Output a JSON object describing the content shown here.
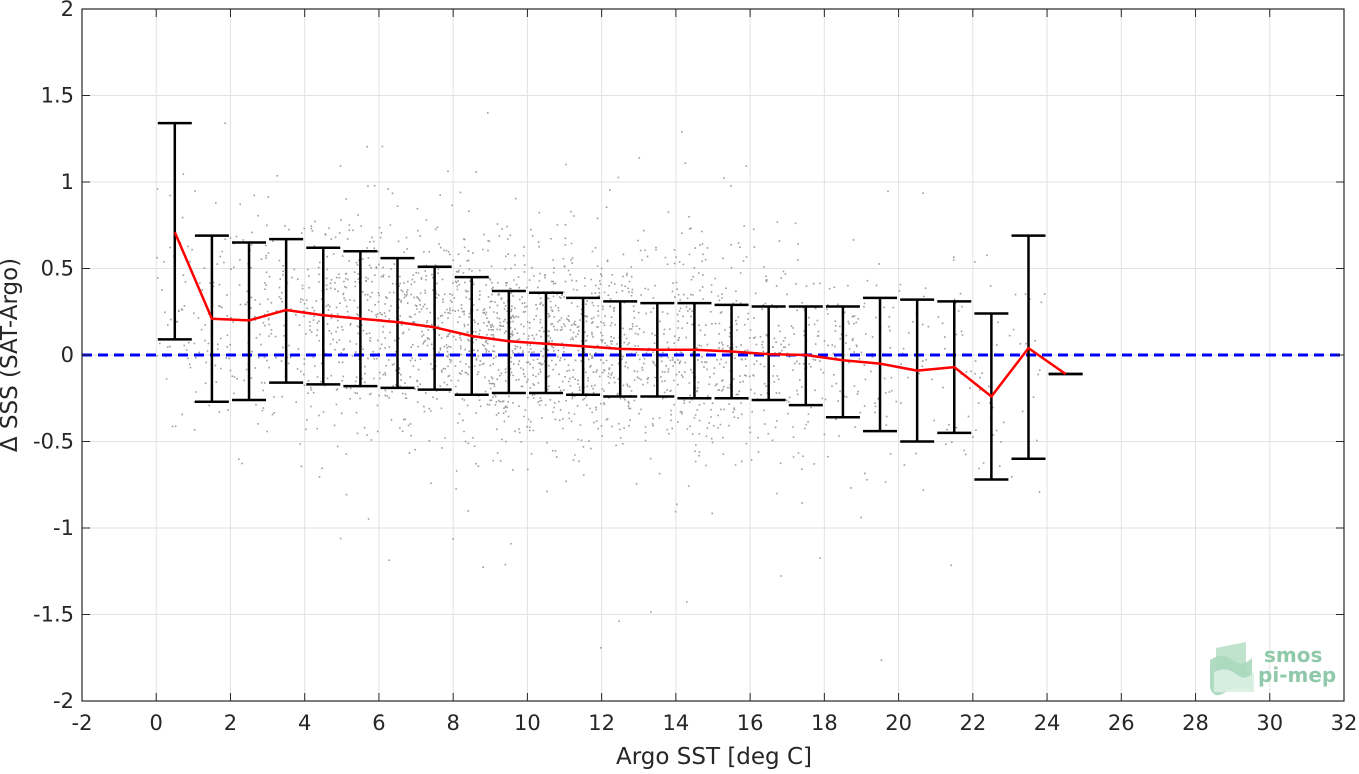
{
  "chart_data": {
    "type": "scatter",
    "title": "",
    "xlabel": "Argo SST [deg C]",
    "ylabel": "Δ SSS (SAT-Argo)",
    "xlim": [
      -2,
      32
    ],
    "ylim": [
      -2,
      2
    ],
    "grid": true,
    "x_ticks": [
      -2,
      0,
      2,
      4,
      6,
      8,
      10,
      12,
      14,
      16,
      18,
      20,
      22,
      24,
      26,
      28,
      30,
      32
    ],
    "x_tick_labels": [
      "-2",
      "0",
      "2",
      "4",
      "6",
      "8",
      "10",
      "12",
      "14",
      "16",
      "18",
      "20",
      "22",
      "24",
      "26",
      "28",
      "30",
      "32"
    ],
    "y_ticks": [
      2,
      1.5,
      1,
      0.5,
      0,
      -0.5,
      -1,
      -1.5,
      -2
    ],
    "y_tick_labels": [
      "2",
      "1.5",
      "1",
      "0.5",
      "0",
      "-0.5",
      "-1",
      "-1.5",
      "-2"
    ],
    "series": [
      {
        "kind": "scatter-cloud",
        "color": "#8c8c8c",
        "x_range": [
          0,
          24
        ],
        "description_values": {
          "center_mean_by_sst": "follows binned mean",
          "typical_spread": 0.45
        }
      },
      {
        "kind": "binned-mean-with-std-errorbars",
        "color": "#ff0000",
        "errorbar_color": "#000000",
        "x": [
          0.5,
          1.5,
          2.5,
          3.5,
          4.5,
          5.5,
          6.5,
          7.5,
          8.5,
          9.5,
          10.5,
          11.5,
          12.5,
          13.5,
          14.5,
          15.5,
          16.5,
          17.5,
          18.5,
          19.5,
          20.5,
          21.5,
          22.5,
          23.5,
          24.5
        ],
        "mean": [
          0.71,
          0.21,
          0.2,
          0.26,
          0.23,
          0.21,
          0.19,
          0.16,
          0.11,
          0.08,
          0.065,
          0.05,
          0.035,
          0.03,
          0.03,
          0.02,
          0.005,
          0.0,
          -0.03,
          -0.05,
          -0.09,
          -0.07,
          -0.24,
          0.04,
          -0.11
        ],
        "upper": [
          1.34,
          0.69,
          0.65,
          0.67,
          0.62,
          0.6,
          0.56,
          0.51,
          0.45,
          0.37,
          0.36,
          0.33,
          0.31,
          0.3,
          0.3,
          0.29,
          0.28,
          0.28,
          0.28,
          0.33,
          0.32,
          0.31,
          0.24,
          0.69,
          -0.11
        ],
        "lower": [
          0.09,
          -0.27,
          -0.26,
          -0.16,
          -0.17,
          -0.18,
          -0.19,
          -0.2,
          -0.23,
          -0.22,
          -0.22,
          -0.23,
          -0.24,
          -0.24,
          -0.25,
          -0.25,
          -0.26,
          -0.29,
          -0.36,
          -0.44,
          -0.5,
          -0.45,
          -0.72,
          -0.6,
          -0.11
        ]
      },
      {
        "kind": "reference-line",
        "style": "dashed",
        "color": "#0000ff",
        "y": 0
      }
    ]
  },
  "logo": {
    "line1": "smos",
    "line2": "pi-mep",
    "color": "#8fc9a9"
  }
}
